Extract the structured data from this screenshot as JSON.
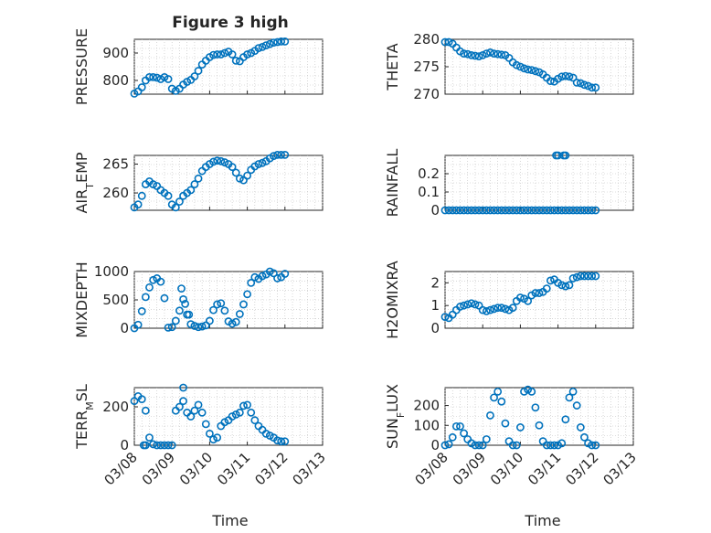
{
  "figure": {
    "title": "Figure 3 high",
    "xlabel": "Time",
    "series_color": "#0072bd",
    "marker": "circle"
  },
  "chart_data": [
    {
      "type": "scatter",
      "id": "pressure",
      "ylabel_parts": [
        "PRESSURE"
      ],
      "xlim": [
        0,
        5
      ],
      "ylim": [
        750,
        950
      ],
      "yticks": [
        800,
        900
      ],
      "xtick_labels": [
        "03/08",
        "03/09",
        "03/10",
        "03/11",
        "03/12",
        "03/13"
      ],
      "show_xticklabels": false,
      "x": [
        0,
        0.1,
        0.2,
        0.3,
        0.4,
        0.5,
        0.6,
        0.7,
        0.8,
        0.9,
        1.0,
        1.1,
        1.2,
        1.3,
        1.4,
        1.5,
        1.6,
        1.7,
        1.8,
        1.9,
        2.0,
        2.1,
        2.2,
        2.3,
        2.4,
        2.5,
        2.6,
        2.7,
        2.8,
        2.9,
        3.0,
        3.1,
        3.2,
        3.3,
        3.4,
        3.5,
        3.6,
        3.7,
        3.8,
        3.9,
        4.0
      ],
      "y": [
        752,
        760,
        775,
        800,
        812,
        812,
        810,
        805,
        812,
        805,
        770,
        762,
        770,
        785,
        795,
        802,
        815,
        835,
        858,
        872,
        885,
        893,
        895,
        895,
        900,
        905,
        895,
        872,
        870,
        885,
        895,
        900,
        908,
        918,
        922,
        928,
        933,
        938,
        940,
        942,
        942
      ]
    },
    {
      "type": "scatter",
      "id": "theta",
      "ylabel_parts": [
        "THETA"
      ],
      "xlim": [
        0,
        5
      ],
      "ylim": [
        270,
        280
      ],
      "yticks": [
        270,
        275,
        280
      ],
      "xtick_labels": [
        "03/08",
        "03/09",
        "03/10",
        "03/11",
        "03/12",
        "03/13"
      ],
      "show_xticklabels": false,
      "x": [
        0,
        0.1,
        0.2,
        0.3,
        0.4,
        0.5,
        0.6,
        0.7,
        0.8,
        0.9,
        1.0,
        1.1,
        1.2,
        1.3,
        1.4,
        1.5,
        1.6,
        1.7,
        1.8,
        1.9,
        2.0,
        2.1,
        2.2,
        2.3,
        2.4,
        2.5,
        2.6,
        2.7,
        2.8,
        2.9,
        3.0,
        3.1,
        3.2,
        3.3,
        3.4,
        3.5,
        3.6,
        3.7,
        3.8,
        3.9,
        4.0
      ],
      "y": [
        279.5,
        279.5,
        279.2,
        278.5,
        277.8,
        277.4,
        277.3,
        277.1,
        277.0,
        276.9,
        277.1,
        277.4,
        277.6,
        277.4,
        277.3,
        277.2,
        277.1,
        276.6,
        275.8,
        275.3,
        275.0,
        274.7,
        274.5,
        274.4,
        274.2,
        274.0,
        273.6,
        273.0,
        272.4,
        272.3,
        272.8,
        273.2,
        273.3,
        273.2,
        273.0,
        272.1,
        272.0,
        271.7,
        271.5,
        271.2,
        271.2
      ]
    },
    {
      "type": "scatter",
      "id": "air-temp",
      "ylabel_parts": [
        "AIR",
        "T",
        "EMP"
      ],
      "xlim": [
        0,
        5
      ],
      "ylim": [
        257,
        266.5
      ],
      "yticks": [
        260,
        265
      ],
      "xtick_labels": [
        "03/08",
        "03/09",
        "03/10",
        "03/11",
        "03/12",
        "03/13"
      ],
      "show_xticklabels": false,
      "x": [
        0,
        0.1,
        0.2,
        0.3,
        0.4,
        0.5,
        0.6,
        0.7,
        0.8,
        0.9,
        1.0,
        1.1,
        1.2,
        1.3,
        1.4,
        1.5,
        1.6,
        1.7,
        1.8,
        1.9,
        2.0,
        2.1,
        2.2,
        2.3,
        2.4,
        2.5,
        2.6,
        2.7,
        2.8,
        2.9,
        3.0,
        3.1,
        3.2,
        3.3,
        3.4,
        3.5,
        3.6,
        3.7,
        3.8,
        3.9,
        4.0
      ],
      "y": [
        257.5,
        258.0,
        259.5,
        261.5,
        262.0,
        261.5,
        261.2,
        260.5,
        260.0,
        259.5,
        258.0,
        257.5,
        258.5,
        259.5,
        260.0,
        260.5,
        261.5,
        262.5,
        263.8,
        264.5,
        265.0,
        265.4,
        265.6,
        265.5,
        265.3,
        265.0,
        264.5,
        263.5,
        262.5,
        262.2,
        263.0,
        264.0,
        264.6,
        265.0,
        265.2,
        265.5,
        266.0,
        266.4,
        266.6,
        266.6,
        266.6
      ]
    },
    {
      "type": "scatter",
      "id": "rainfall",
      "ylabel_parts": [
        "RAINFALL"
      ],
      "xlim": [
        0,
        5
      ],
      "ylim": [
        0,
        0.3
      ],
      "yticks": [
        0,
        0.1,
        0.2
      ],
      "xtick_labels": [
        "03/08",
        "03/09",
        "03/10",
        "03/11",
        "03/12",
        "03/13"
      ],
      "show_xticklabels": false,
      "x": [
        0,
        0.1,
        0.2,
        0.3,
        0.4,
        0.5,
        0.6,
        0.7,
        0.8,
        0.9,
        1.0,
        1.1,
        1.2,
        1.3,
        1.4,
        1.5,
        1.6,
        1.7,
        1.8,
        1.9,
        2.0,
        2.1,
        2.2,
        2.3,
        2.4,
        2.5,
        2.6,
        2.7,
        2.8,
        2.9,
        3.0,
        3.1,
        3.2,
        3.3,
        3.4,
        3.5,
        3.6,
        3.7,
        3.8,
        3.9,
        4.0,
        2.95,
        3.0,
        3.15,
        3.2
      ],
      "y": [
        0,
        0,
        0,
        0,
        0,
        0,
        0,
        0,
        0,
        0,
        0,
        0,
        0,
        0,
        0,
        0,
        0,
        0,
        0,
        0,
        0,
        0,
        0,
        0,
        0,
        0,
        0,
        0,
        0,
        0,
        0,
        0,
        0,
        0,
        0,
        0,
        0,
        0,
        0,
        0,
        0,
        0.3,
        0.3,
        0.3,
        0.3
      ]
    },
    {
      "type": "scatter",
      "id": "mixdepth",
      "ylabel_parts": [
        "MIXDEPTH"
      ],
      "xlim": [
        0,
        5
      ],
      "ylim": [
        0,
        1000
      ],
      "yticks": [
        0,
        500,
        1000
      ],
      "xtick_labels": [
        "03/08",
        "03/09",
        "03/10",
        "03/11",
        "03/12",
        "03/13"
      ],
      "show_xticklabels": false,
      "x": [
        0,
        0.1,
        0.2,
        0.3,
        0.4,
        0.5,
        0.6,
        0.7,
        0.8,
        0.9,
        1.0,
        1.1,
        1.2,
        1.3,
        1.4,
        1.5,
        1.6,
        1.7,
        1.8,
        1.9,
        2.0,
        2.1,
        2.2,
        2.3,
        2.4,
        2.5,
        2.6,
        2.7,
        2.8,
        2.9,
        3.0,
        3.1,
        3.2,
        3.3,
        3.4,
        3.5,
        3.6,
        3.7,
        3.8,
        3.9,
        4.0,
        1.25,
        1.35,
        1.45
      ],
      "y": [
        0,
        60,
        300,
        550,
        720,
        850,
        880,
        820,
        530,
        10,
        20,
        130,
        310,
        510,
        240,
        70,
        40,
        20,
        30,
        50,
        130,
        320,
        420,
        440,
        310,
        120,
        80,
        110,
        250,
        420,
        600,
        800,
        900,
        870,
        920,
        950,
        1000,
        970,
        880,
        900,
        960,
        700,
        430,
        240
      ]
    },
    {
      "type": "scatter",
      "id": "h2omixra",
      "ylabel_parts": [
        "H2OMIXRA"
      ],
      "xlim": [
        0,
        5
      ],
      "ylim": [
        0,
        2.5
      ],
      "yticks": [
        0,
        1,
        2
      ],
      "xtick_labels": [
        "03/08",
        "03/09",
        "03/10",
        "03/11",
        "03/12",
        "03/13"
      ],
      "show_xticklabels": false,
      "x": [
        0,
        0.1,
        0.2,
        0.3,
        0.4,
        0.5,
        0.6,
        0.7,
        0.8,
        0.9,
        1.0,
        1.1,
        1.2,
        1.3,
        1.4,
        1.5,
        1.6,
        1.7,
        1.8,
        1.9,
        2.0,
        2.1,
        2.2,
        2.3,
        2.4,
        2.5,
        2.6,
        2.7,
        2.8,
        2.9,
        3.0,
        3.1,
        3.2,
        3.3,
        3.4,
        3.5,
        3.6,
        3.7,
        3.8,
        3.9,
        4.0
      ],
      "y": [
        0.5,
        0.45,
        0.6,
        0.8,
        0.95,
        1.0,
        1.05,
        1.1,
        1.05,
        1.0,
        0.8,
        0.75,
        0.8,
        0.85,
        0.9,
        0.9,
        0.85,
        0.8,
        0.9,
        1.2,
        1.35,
        1.3,
        1.2,
        1.45,
        1.55,
        1.55,
        1.6,
        1.75,
        2.1,
        2.15,
        2.0,
        1.9,
        1.85,
        1.9,
        2.2,
        2.25,
        2.3,
        2.3,
        2.3,
        2.3,
        2.3
      ]
    },
    {
      "type": "scatter",
      "id": "terr-msl",
      "ylabel_parts": [
        "TERR",
        "M",
        "SL"
      ],
      "xlim": [
        0,
        5
      ],
      "ylim": [
        0,
        300
      ],
      "yticks": [
        0,
        200
      ],
      "xtick_labels": [
        "03/08",
        "03/09",
        "03/10",
        "03/11",
        "03/12",
        "03/13"
      ],
      "show_xticklabels": true,
      "x": [
        0,
        0.1,
        0.2,
        0.3,
        0.4,
        0.5,
        0.6,
        0.7,
        0.8,
        0.9,
        1.0,
        1.1,
        1.2,
        1.3,
        1.4,
        1.5,
        1.6,
        1.7,
        1.8,
        1.9,
        2.0,
        2.1,
        2.2,
        2.3,
        2.4,
        2.5,
        2.6,
        2.7,
        2.8,
        2.9,
        3.0,
        3.1,
        3.2,
        3.3,
        3.4,
        3.5,
        3.6,
        3.7,
        3.8,
        3.9,
        4.0,
        1.3,
        0.25,
        0.3
      ],
      "y": [
        230,
        255,
        240,
        180,
        40,
        5,
        0,
        0,
        0,
        0,
        0,
        180,
        200,
        230,
        170,
        150,
        180,
        210,
        170,
        110,
        60,
        30,
        40,
        100,
        120,
        130,
        150,
        160,
        170,
        205,
        210,
        170,
        130,
        100,
        80,
        60,
        50,
        40,
        25,
        20,
        20,
        300,
        0,
        0
      ]
    },
    {
      "type": "scatter",
      "id": "sun-flux",
      "ylabel_parts": [
        "SUN",
        "F",
        "LUX"
      ],
      "xlim": [
        0,
        5
      ],
      "ylim": [
        0,
        290
      ],
      "yticks": [
        0,
        100,
        200
      ],
      "xtick_labels": [
        "03/08",
        "03/09",
        "03/10",
        "03/11",
        "03/12",
        "03/13"
      ],
      "show_xticklabels": true,
      "x": [
        0,
        0.1,
        0.2,
        0.3,
        0.4,
        0.5,
        0.6,
        0.7,
        0.8,
        0.9,
        1.0,
        1.1,
        1.2,
        1.3,
        1.4,
        1.5,
        1.6,
        1.7,
        1.8,
        1.9,
        2.0,
        2.1,
        2.2,
        2.3,
        2.4,
        2.5,
        2.6,
        2.7,
        2.8,
        2.9,
        3.0,
        3.1,
        3.2,
        3.3,
        3.4,
        3.5,
        3.6,
        3.7,
        3.8,
        3.9,
        4.0
      ],
      "y": [
        0,
        5,
        40,
        95,
        95,
        60,
        30,
        10,
        0,
        0,
        0,
        30,
        150,
        240,
        270,
        220,
        110,
        20,
        0,
        0,
        90,
        270,
        280,
        270,
        190,
        100,
        20,
        0,
        0,
        0,
        0,
        10,
        130,
        240,
        270,
        200,
        90,
        40,
        10,
        0,
        0
      ]
    }
  ]
}
